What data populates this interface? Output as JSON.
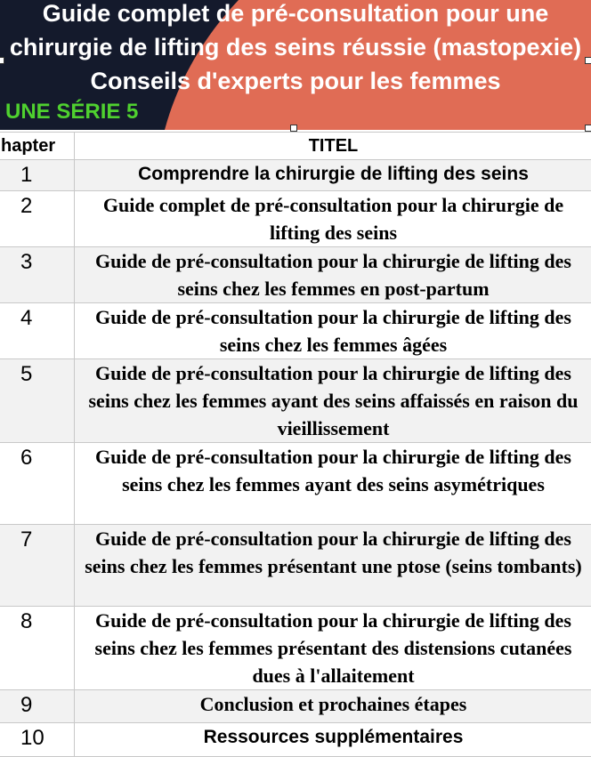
{
  "cover": {
    "title": "Guide complet de pré-consultation pour une chirurgie de lifting des seins réussie (mastopexie) Conseils d'experts pour les femmes",
    "series_label": "UNE SÉRIE 5",
    "colors": {
      "dark": "#141a2c",
      "accent": "#e06c55",
      "series": "#4fd12f"
    }
  },
  "table": {
    "headers": [
      "hapter",
      "TITEL"
    ],
    "rows": [
      {
        "chapter": "1",
        "title": "Comprendre la chirurgie de lifting des seins"
      },
      {
        "chapter": "2",
        "title": "Guide complet de pré-consultation pour la chirurgie de lifting des seins"
      },
      {
        "chapter": "3",
        "title": "Guide de pré-consultation pour la chirurgie de lifting des seins chez les femmes en post-partum"
      },
      {
        "chapter": "4",
        "title": "Guide de pré-consultation pour la chirurgie de lifting des seins chez les femmes âgées"
      },
      {
        "chapter": "5",
        "title": "Guide de pré-consultation pour la chirurgie de lifting des seins chez les femmes ayant des seins affaissés en raison du vieillissement"
      },
      {
        "chapter": "6",
        "title": "Guide de pré-consultation pour la chirurgie de lifting des seins chez les femmes ayant des seins asymétriques"
      },
      {
        "chapter": "7",
        "title": "Guide de pré-consultation pour la chirurgie de lifting des seins chez les femmes présentant une ptose (seins tombants)"
      },
      {
        "chapter": "8",
        "title": "Guide de pré-consultation pour la chirurgie de lifting des seins chez les femmes présentant des distensions cutanées dues à l'allaitement"
      },
      {
        "chapter": "9",
        "title": "Conclusion et prochaines étapes"
      },
      {
        "chapter": "10",
        "title": "Ressources supplémentaires"
      }
    ]
  }
}
